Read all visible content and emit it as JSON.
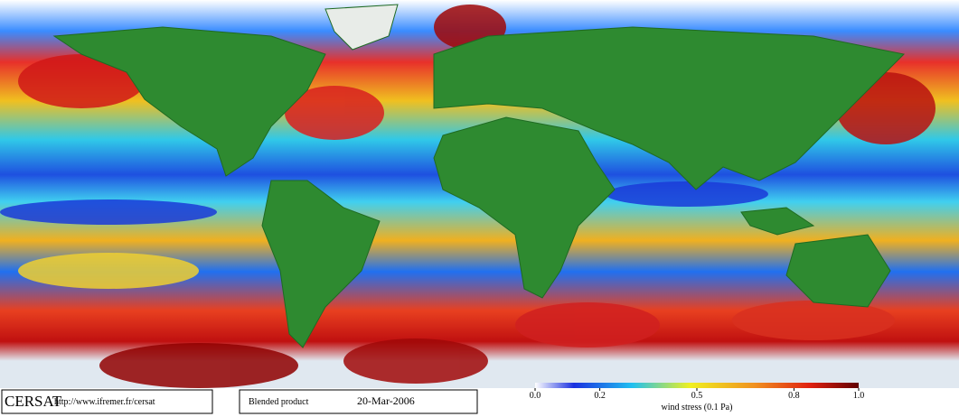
{
  "logo": "CERSAT",
  "url": "http://www.ifremer.fr/cersat",
  "product": "Blended product",
  "date": "20-Mar-2006",
  "colorbar": {
    "range": [
      0,
      1
    ],
    "ticks": [
      {
        "value": 0,
        "label": "0.0"
      },
      0.2,
      0.5,
      0.8,
      {
        "value": 1,
        "label": "1.0"
      }
    ],
    "label": "wind stress (0.1 Pa)"
  }
}
